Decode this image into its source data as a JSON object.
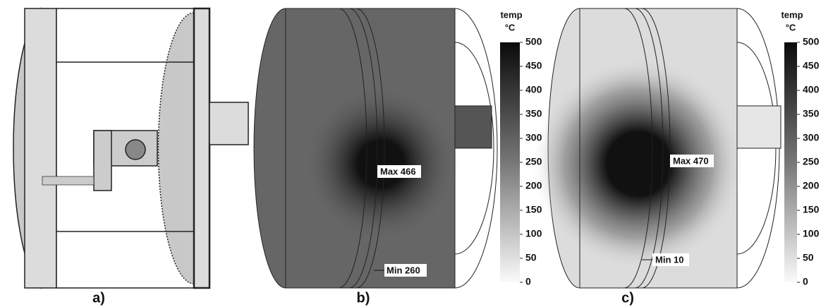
{
  "panels": [
    {
      "label": "a)"
    },
    {
      "label": "b)",
      "colorbar": {
        "title": "temp",
        "unit": "°C",
        "ticks": [
          0,
          50,
          100,
          150,
          200,
          250,
          300,
          350,
          400,
          450,
          500
        ]
      },
      "annotations": [
        "Max 466",
        "Min 260"
      ]
    },
    {
      "label": "c)",
      "colorbar": {
        "title": "temp",
        "unit": "°C",
        "ticks": [
          0,
          50,
          100,
          150,
          200,
          250,
          300,
          350,
          400,
          450,
          500
        ]
      },
      "annotations": [
        "Max 470",
        "Min 10"
      ]
    }
  ]
}
